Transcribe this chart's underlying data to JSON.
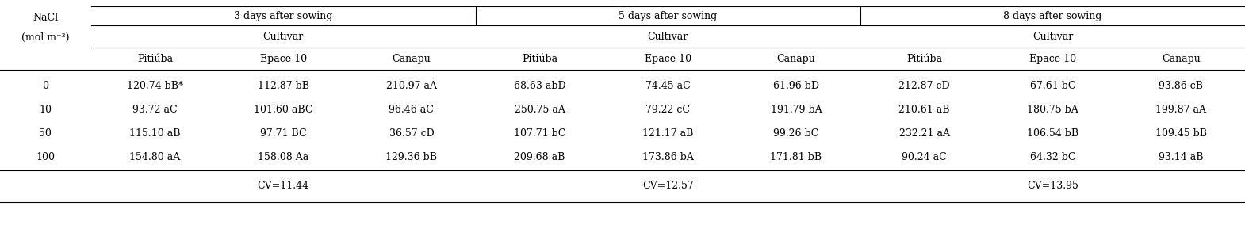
{
  "col_header_row1": [
    "3 days after sowing",
    "5 days after sowing",
    "8 days after sowing"
  ],
  "col_header_row3": [
    "Pitiúba",
    "Epace 10",
    "Canapu",
    "Pitiúba",
    "Epace 10",
    "Canapu",
    "Pitiúba",
    "Epace 10",
    "Canapu"
  ],
  "nacl_label_line1": "NaCl",
  "nacl_label_line2": "(mol m⁻³)",
  "cultivar_label": "Cultivar",
  "nacl_levels": [
    "0",
    "10",
    "50",
    "100"
  ],
  "cv_row": [
    "CV=11.44",
    "CV=12.57",
    "CV=13.95"
  ],
  "table_data": [
    [
      "120.74 bB*",
      "112.87 bB",
      "210.97 aA",
      "68.63 abD",
      "74.45 aC",
      "61.96 bD",
      "212.87 cD",
      "67.61 bC",
      "93.86 cB"
    ],
    [
      "93.72 aC",
      "101.60 aBC",
      "96.46 aC",
      "250.75 aA",
      "79.22 cC",
      "191.79 bA",
      "210.61 aB",
      "180.75 bA",
      "199.87 aA"
    ],
    [
      "115.10 aB",
      "97.71 BC",
      "36.57 cD",
      "107.71 bC",
      "121.17 aB",
      "99.26 bC",
      "232.21 aA",
      "106.54 bB",
      "109.45 bB"
    ],
    [
      "154.80 aA",
      "158.08 Aa",
      "129.36 bB",
      "209.68 aB",
      "173.86 bA",
      "171.81 bB",
      "90.24 aC",
      "64.32 bC",
      "93.14 aB"
    ]
  ],
  "font_size": 9.0,
  "bg_color": "#ffffff",
  "text_color": "#000000",
  "fig_width": 15.7,
  "fig_height": 2.84,
  "dpi": 100
}
